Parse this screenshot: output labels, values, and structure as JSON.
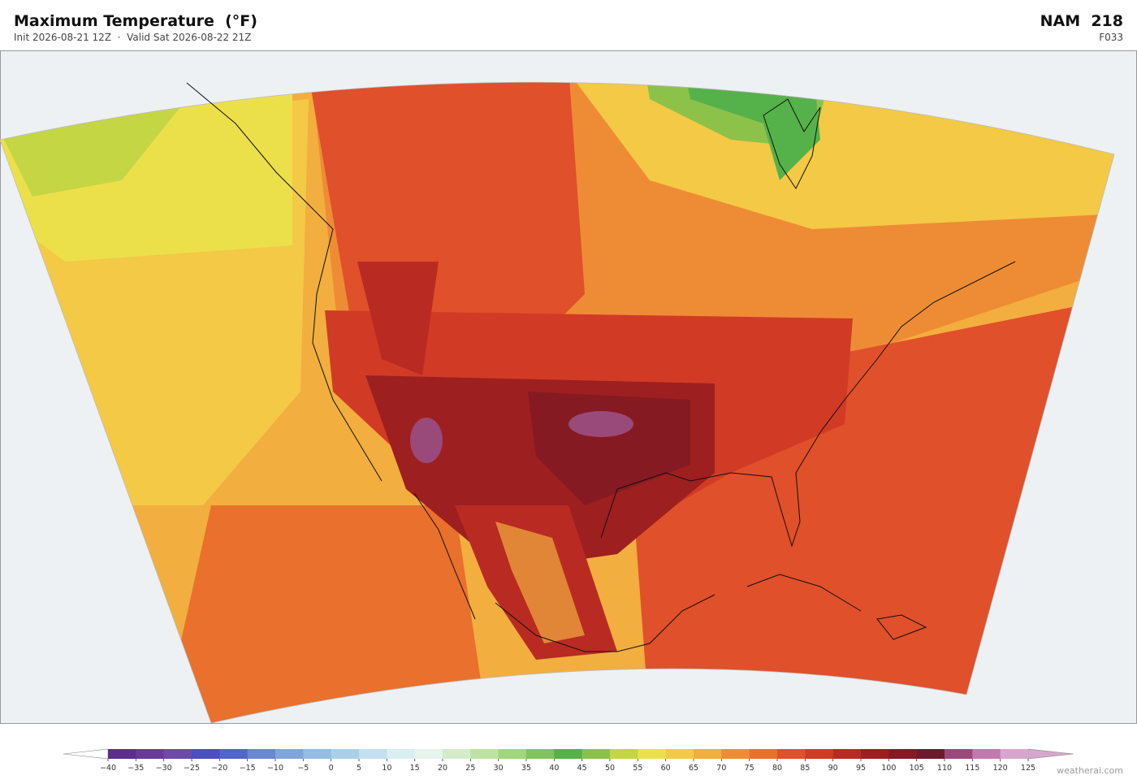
{
  "header": {
    "title": "Maximum Temperature  (°F)",
    "subtitle": "Init 2026-08-21 12Z  ·  Valid Sat 2026-08-22 21Z",
    "model": "NAM  218",
    "forecast_hour": "F033"
  },
  "colorbar": {
    "ticks": [
      {
        "value": -40,
        "label": "−40"
      },
      {
        "value": -35,
        "label": "−35"
      },
      {
        "value": -30,
        "label": "−30"
      },
      {
        "value": -25,
        "label": "−25"
      },
      {
        "value": -20,
        "label": "−20"
      },
      {
        "value": -15,
        "label": "−15"
      },
      {
        "value": -10,
        "label": "−10"
      },
      {
        "value": -5,
        "label": "−5"
      },
      0,
      5,
      10,
      15,
      20,
      25,
      30,
      35,
      40,
      45,
      50,
      55,
      60,
      65,
      70,
      75,
      80,
      85,
      90,
      95,
      100,
      105,
      110,
      115,
      120,
      125
    ],
    "colors": [
      "#5b2d8e",
      "#6a3a9a",
      "#6d4aa8",
      "#4b4fbf",
      "#5066c8",
      "#6a88d0",
      "#7ea6da",
      "#93bde2",
      "#a9d0e8",
      "#c2e0ee",
      "#d9eef3",
      "#e6f4ec",
      "#d4ecc8",
      "#bde3a2",
      "#a0d67e",
      "#7fc45e",
      "#55b24a",
      "#8cc24a",
      "#c5d645",
      "#ece04a",
      "#f3c946",
      "#f2ae3e",
      "#ee8c35",
      "#e9702d",
      "#e0502a",
      "#d13b26",
      "#b92b22",
      "#9e1f1f",
      "#861a22",
      "#6e1a2c",
      "#9a4a7a",
      "#c07ab0",
      "#d6a6cc"
    ],
    "under_color": "#ffffff",
    "over_color": "#d7a6cf"
  },
  "watermark": "weatherai.com"
}
